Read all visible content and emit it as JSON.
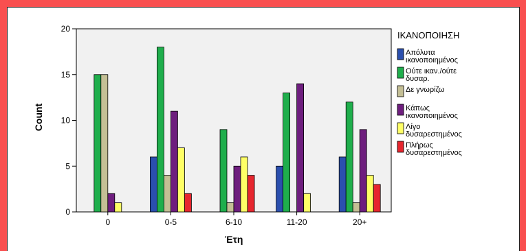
{
  "chart_data": {
    "type": "bar",
    "title": "",
    "xlabel": "Έτη",
    "ylabel": "Count",
    "ylim": [
      0,
      20
    ],
    "yticks": [
      0,
      5,
      10,
      15,
      20
    ],
    "categories": [
      "0",
      "0-5",
      "6-10",
      "11-20",
      "20+"
    ],
    "legend_title": "ΙΚΑΝΟΠΟΙΗΣΗ",
    "legend_position": "right",
    "grid": false,
    "series": [
      {
        "name": "Απόλυτα ικανοποιημένος",
        "color": "#2b4fae",
        "values": [
          0,
          6,
          0,
          5,
          6
        ]
      },
      {
        "name": "Ούτε ικαν./ούτε δυσαρ.",
        "color": "#1fae4c",
        "values": [
          15,
          18,
          9,
          13,
          12
        ]
      },
      {
        "name": "Δε γνωρίζω",
        "color": "#c4bf95",
        "values": [
          15,
          4,
          1,
          0,
          1
        ]
      },
      {
        "name": "Κάπως ικανοποιημένος",
        "color": "#6e1e7e",
        "values": [
          2,
          11,
          5,
          14,
          9
        ]
      },
      {
        "name": "Λίγο δυσαρεστημένος",
        "color": "#ffff66",
        "values": [
          1,
          7,
          6,
          2,
          4
        ]
      },
      {
        "name": "Πλήρως δυσαρεστημένος",
        "color": "#e6262e",
        "values": [
          0,
          2,
          4,
          0,
          3
        ]
      }
    ]
  }
}
